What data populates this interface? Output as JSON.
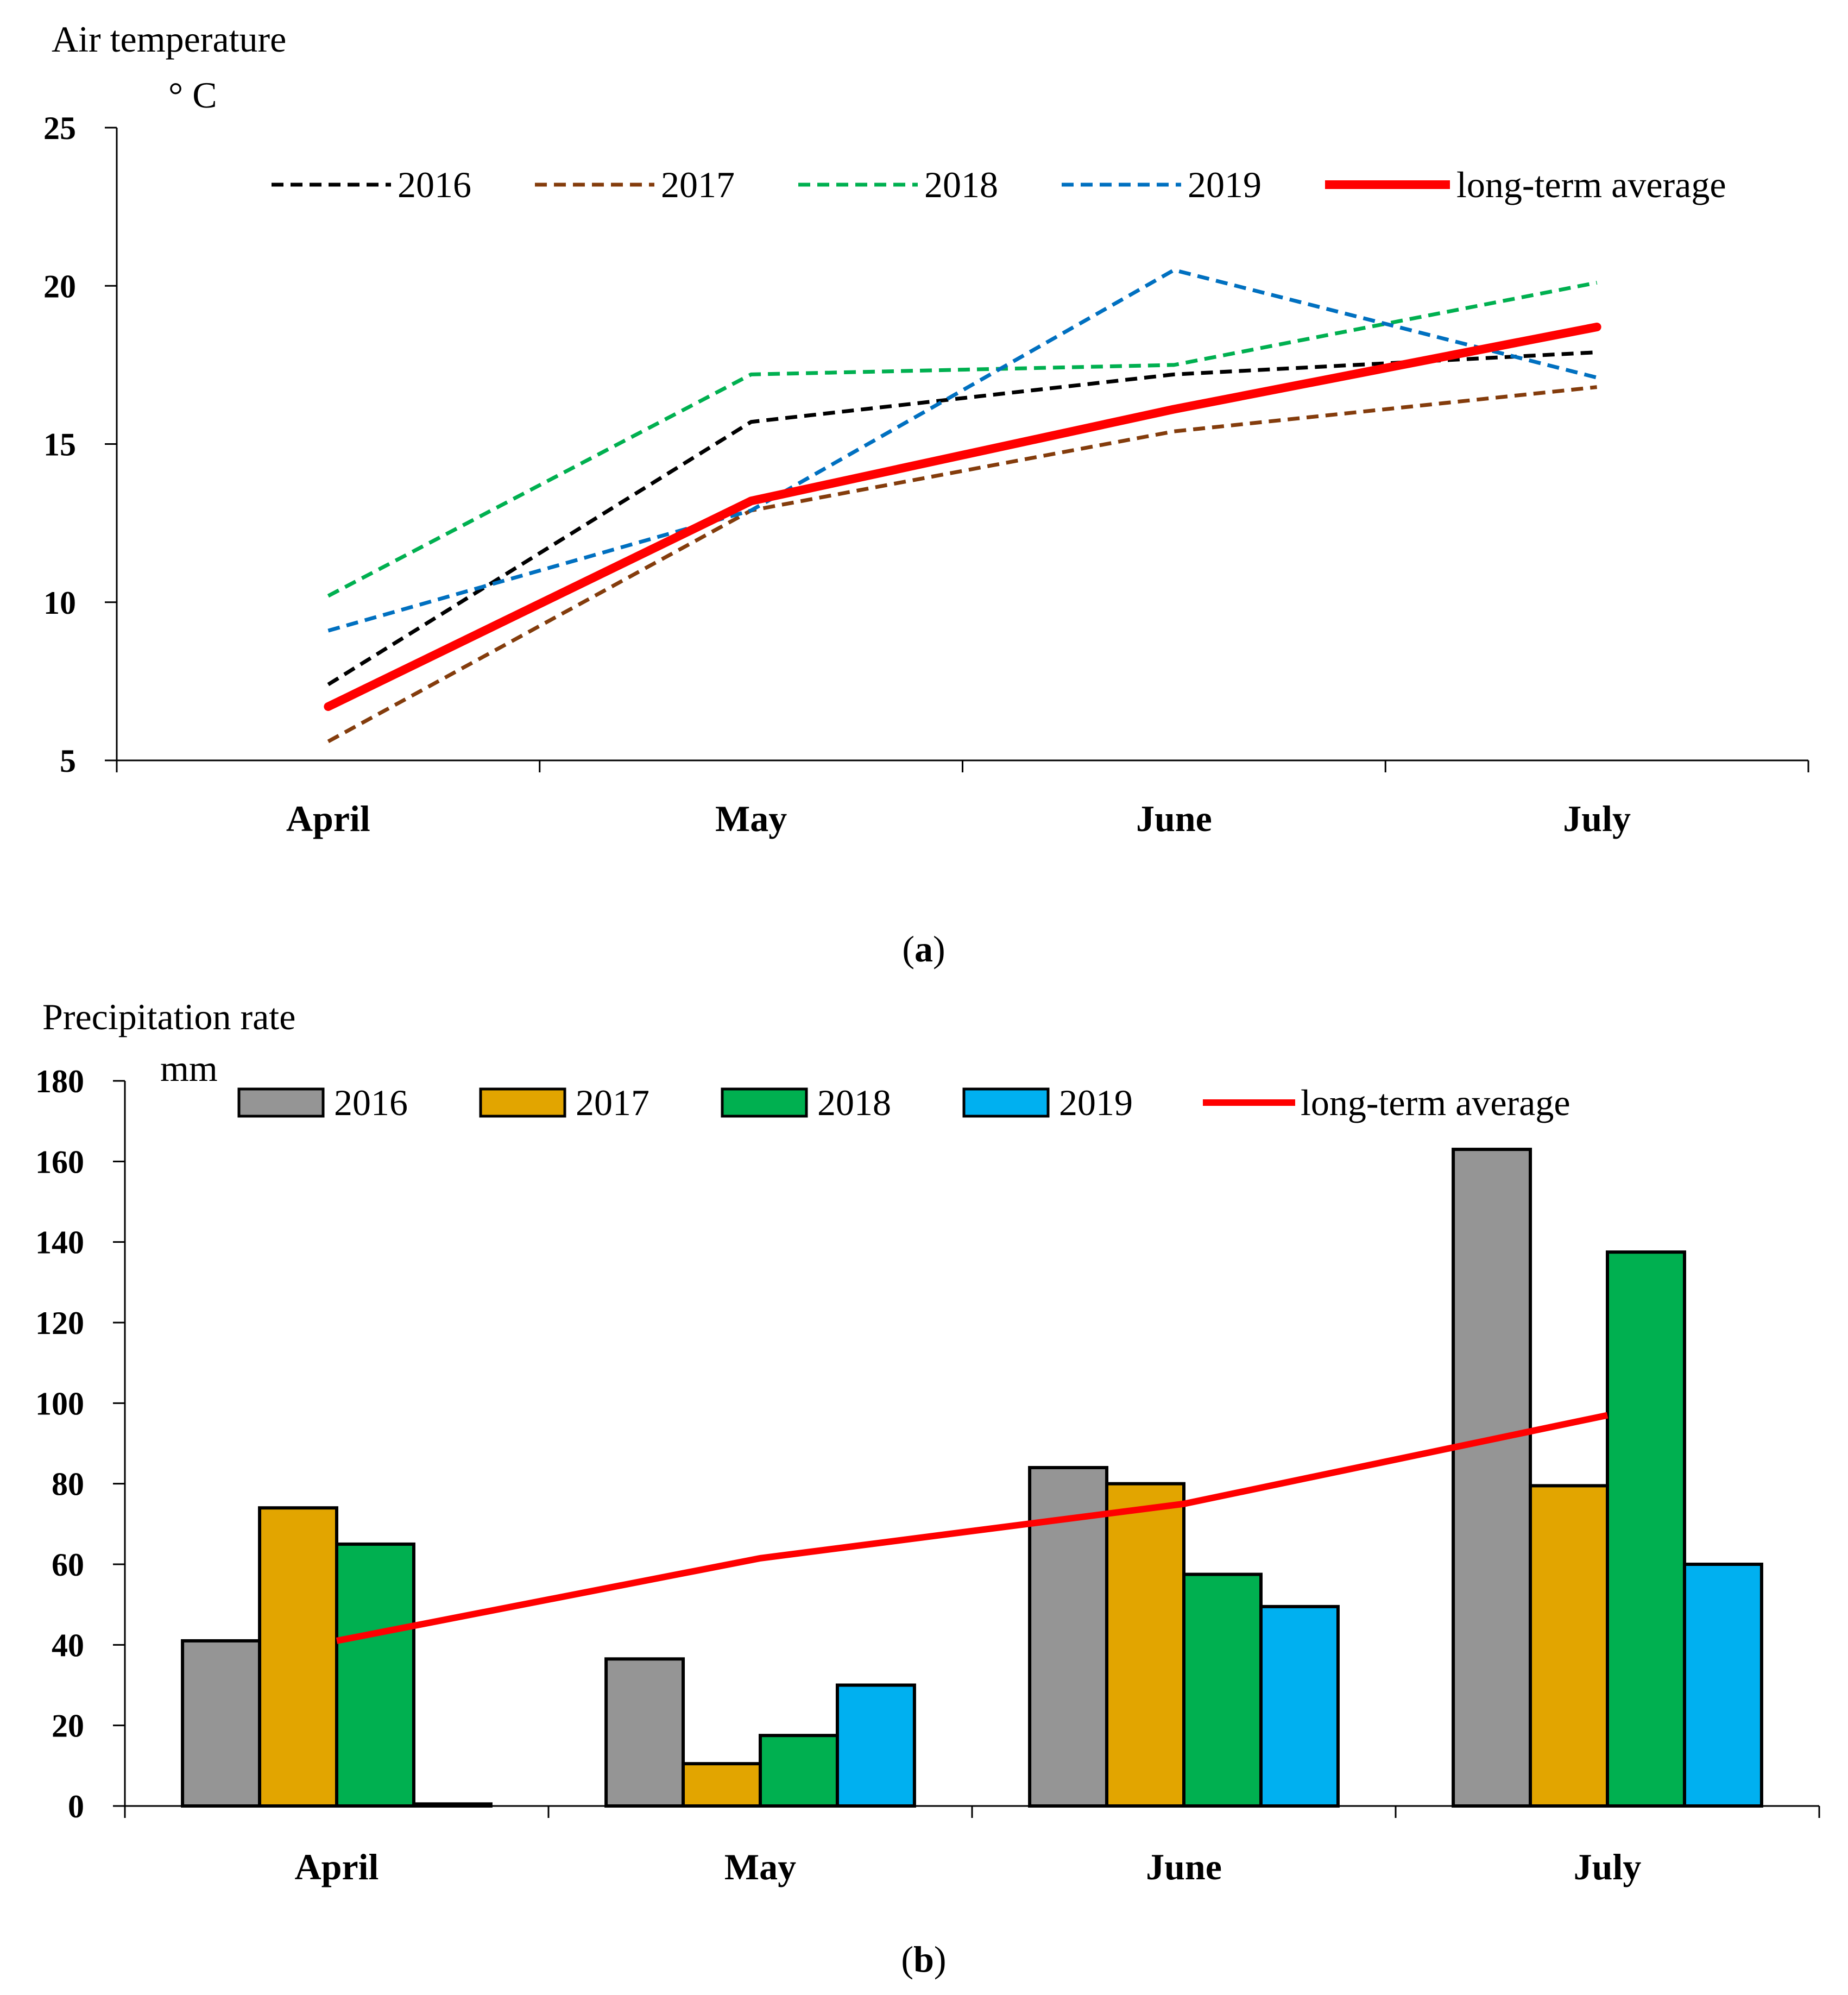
{
  "chart_data": [
    {
      "id": "a",
      "type": "line",
      "ylabel": "Air temperature",
      "yunit": "° C",
      "caption_label": "a",
      "categories": [
        "April",
        "May",
        "June",
        "July"
      ],
      "ylim": [
        5,
        25
      ],
      "yticks": [
        5,
        10,
        15,
        20,
        25
      ],
      "legend_position": "top",
      "series": [
        {
          "name": "2016",
          "values": [
            7.4,
            15.7,
            17.2,
            17.9
          ],
          "color": "#000000",
          "style": "dashed"
        },
        {
          "name": "2017",
          "values": [
            5.6,
            12.9,
            15.4,
            16.8
          ],
          "color": "#843c0c",
          "style": "dashed"
        },
        {
          "name": "2018",
          "values": [
            10.2,
            17.2,
            17.5,
            20.1
          ],
          "color": "#00b050",
          "style": "dashed"
        },
        {
          "name": "2019",
          "values": [
            9.1,
            12.9,
            20.5,
            17.1
          ],
          "color": "#0070c0",
          "style": "dashed"
        },
        {
          "name": "long-term average",
          "values": [
            6.7,
            13.2,
            16.1,
            18.7
          ],
          "color": "#ff0000",
          "style": "solid"
        }
      ]
    },
    {
      "id": "b",
      "type": "bar",
      "ylabel": "Precipitation rate",
      "yunit": "mm",
      "caption_label": "b",
      "categories": [
        "April",
        "May",
        "June",
        "July"
      ],
      "ylim": [
        0,
        180
      ],
      "yticks": [
        0,
        20,
        40,
        60,
        80,
        100,
        120,
        140,
        160,
        180
      ],
      "legend_position": "top",
      "series": [
        {
          "name": "2016",
          "values": [
            41,
            36.5,
            84,
            163
          ],
          "color": "#959595"
        },
        {
          "name": "2017",
          "values": [
            74,
            10.5,
            80,
            79.5
          ],
          "color": "#e2a500"
        },
        {
          "name": "2018",
          "values": [
            65,
            17.5,
            57.5,
            137.5
          ],
          "color": "#00b050"
        },
        {
          "name": "2019",
          "values": [
            0.5,
            30,
            49.5,
            60
          ],
          "color": "#00b0f0"
        }
      ],
      "line_series": {
        "name": "long-term average",
        "values": [
          41,
          61.5,
          75,
          97
        ],
        "color": "#ff0000"
      }
    }
  ]
}
